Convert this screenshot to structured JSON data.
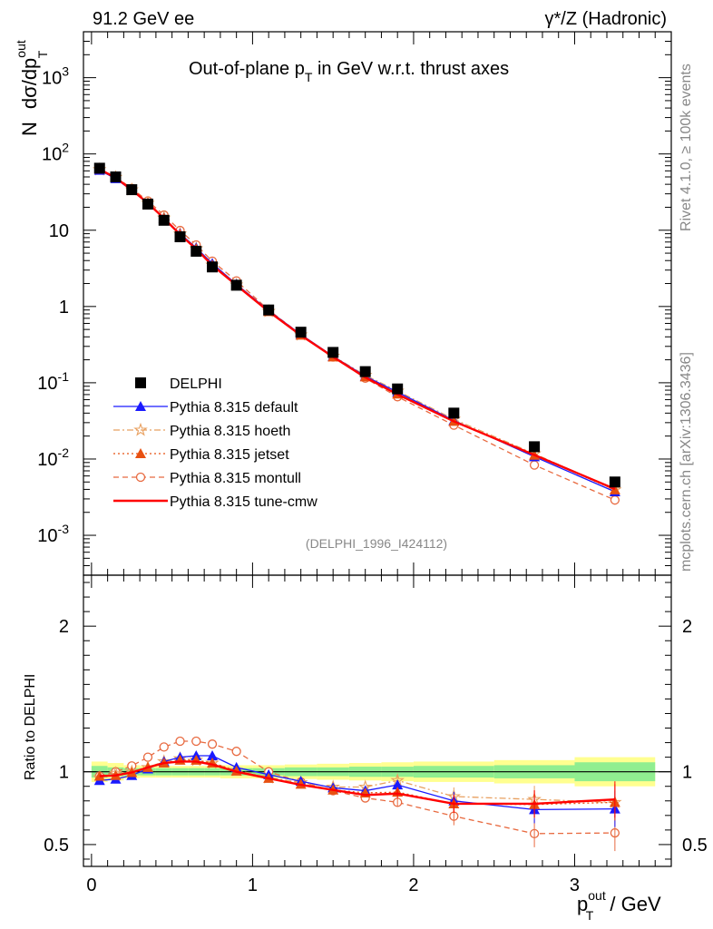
{
  "header": {
    "left": "91.2 GeV ee",
    "right": "γ*/Z (Hadronic)"
  },
  "plot_title": "Out-of-plane p",
  "plot_title_sub": "T",
  "plot_title_rest": " in GeV w.r.t. thrust axes",
  "ylabel_main_prefix": "N",
  "ylabel_main": "dσ/dp",
  "ylabel_main_sup": "out",
  "ylabel_main_sub": "T",
  "ylabel_ratio": "Ratio to DELPHI",
  "xlabel": "p",
  "xlabel_sup": "out",
  "xlabel_sub": "T",
  "xlabel_unit": " / GeV",
  "side_text_top": "Rivet 4.1.0, ≥ 100k events",
  "side_text_bottom": "mcplots.cern.ch [arXiv:1306.3436]",
  "analysis_id": "(DELPHI_1996_I424112)",
  "colors": {
    "data": "#000000",
    "default": "#1a1aff",
    "hoeth": "#e8a060",
    "jetset": "#e85010",
    "montull": "#e86a40",
    "cmw": "#ff0000",
    "band_inner": "#90ee90",
    "band_outer": "#ffff90"
  },
  "chart_data": {
    "type": "line",
    "log_y": true,
    "x": [
      0.05,
      0.15,
      0.25,
      0.35,
      0.45,
      0.55,
      0.65,
      0.75,
      0.9,
      1.1,
      1.3,
      1.5,
      1.7,
      1.9,
      2.25,
      2.75,
      3.25
    ],
    "xlim": [
      -0.05,
      3.6
    ],
    "ylim_main": [
      0.0003,
      4000
    ],
    "ylim_ratio": [
      0.35,
      2.35
    ],
    "x_ticks": [
      "0",
      "1",
      "2",
      "3"
    ],
    "y_ticks_main": [
      "10^-3",
      "10^-2",
      "10^-1",
      "1",
      "10",
      "10^2",
      "10^3"
    ],
    "y_ticks_ratio": [
      "0.5",
      "1",
      "2"
    ],
    "data": {
      "name": "DELPHI",
      "values": [
        65,
        50,
        34,
        22,
        13.5,
        8.2,
        5.3,
        3.3,
        1.9,
        0.9,
        0.46,
        0.25,
        0.14,
        0.083,
        0.04,
        0.0145,
        0.005
      ]
    },
    "band_edges": [
      0.0,
      0.1,
      0.2,
      0.3,
      0.4,
      0.5,
      0.6,
      0.7,
      0.8,
      1.0,
      1.2,
      1.4,
      1.6,
      1.8,
      2.0,
      2.5,
      3.0,
      3.5
    ],
    "band_inner": [
      0.04,
      0.03,
      0.025,
      0.025,
      0.025,
      0.025,
      0.025,
      0.025,
      0.025,
      0.025,
      0.03,
      0.03,
      0.035,
      0.035,
      0.04,
      0.045,
      0.065
    ],
    "band_outer": [
      0.07,
      0.06,
      0.045,
      0.04,
      0.04,
      0.04,
      0.04,
      0.04,
      0.045,
      0.045,
      0.05,
      0.055,
      0.06,
      0.065,
      0.07,
      0.08,
      0.1
    ],
    "series": [
      {
        "name": "Pythia 8.315 default",
        "key": "default",
        "ratio": [
          0.94,
          0.95,
          0.975,
          1.02,
          1.07,
          1.1,
          1.11,
          1.11,
          1.03,
          0.98,
          0.935,
          0.89,
          0.87,
          0.91,
          0.8,
          0.74,
          0.745
        ],
        "marker": "tri",
        "dash": ""
      },
      {
        "name": "Pythia 8.315 hoeth",
        "key": "hoeth",
        "ratio": [
          0.96,
          0.99,
          1.0,
          1.03,
          1.07,
          1.09,
          1.08,
          1.06,
          1.01,
          0.96,
          0.925,
          0.895,
          0.895,
          0.94,
          0.83,
          0.81,
          0.79
        ],
        "marker": "star",
        "dash": "7,3,2,3"
      },
      {
        "name": "Pythia 8.315 jetset",
        "key": "jetset",
        "ratio": [
          0.97,
          0.975,
          0.995,
          1.03,
          1.06,
          1.08,
          1.08,
          1.06,
          1.005,
          0.955,
          0.915,
          0.875,
          0.855,
          0.86,
          0.78,
          0.775,
          0.79
        ],
        "marker": "tri",
        "dash": "2,3"
      },
      {
        "name": "Pythia 8.315 montull",
        "key": "montull",
        "ratio": [
          0.97,
          1.0,
          1.04,
          1.1,
          1.17,
          1.21,
          1.21,
          1.19,
          1.14,
          1.0,
          0.93,
          0.87,
          0.82,
          0.79,
          0.695,
          0.575,
          0.58
        ],
        "marker": "circ",
        "dash": "6,4"
      },
      {
        "name": "Pythia 8.315 tune-cmw",
        "key": "cmw",
        "ratio": [
          0.97,
          0.975,
          0.995,
          1.03,
          1.06,
          1.07,
          1.07,
          1.05,
          1.0,
          0.955,
          0.91,
          0.875,
          0.84,
          0.85,
          0.78,
          0.78,
          0.81
        ],
        "marker": "none",
        "dash": ""
      }
    ]
  }
}
